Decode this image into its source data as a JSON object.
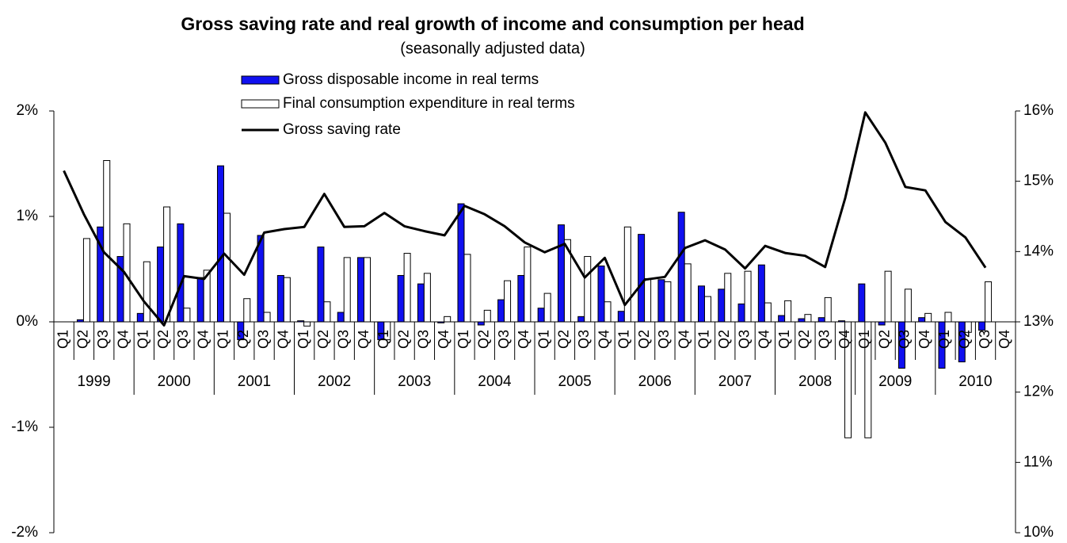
{
  "chart_data": {
    "type": "bar",
    "title": "Gross saving rate and real growth of income and consumption per head",
    "subtitle": "(seasonally adjusted data)",
    "categories": [
      "Q1",
      "Q2",
      "Q3",
      "Q4",
      "Q1",
      "Q2",
      "Q3",
      "Q4",
      "Q1",
      "Q2",
      "Q3",
      "Q4",
      "Q1",
      "Q2",
      "Q3",
      "Q4",
      "Q1",
      "Q2",
      "Q3",
      "Q4",
      "Q1",
      "Q2",
      "Q3",
      "Q4",
      "Q1",
      "Q2",
      "Q3",
      "Q4",
      "Q1",
      "Q2",
      "Q3",
      "Q4",
      "Q1",
      "Q2",
      "Q3",
      "Q4",
      "Q1",
      "Q2",
      "Q3",
      "Q4",
      "Q1",
      "Q2",
      "Q3",
      "Q4",
      "Q1",
      "Q2",
      "Q3",
      "Q4"
    ],
    "years": [
      "1999",
      "2000",
      "2001",
      "2002",
      "2003",
      "2004",
      "2005",
      "2006",
      "2007",
      "2008",
      "2009",
      "2010"
    ],
    "series": [
      {
        "name": "Gross disposable income in real terms",
        "color": "#1010f0",
        "values": [
          0,
          0.02,
          0.9,
          0.62,
          0.08,
          0.71,
          0.93,
          0.42,
          1.48,
          -0.17,
          0.82,
          0.44,
          0.01,
          0.71,
          0.09,
          0.61,
          -0.17,
          0.44,
          0.36,
          -0.01,
          1.12,
          -0.03,
          0.21,
          0.44,
          0.13,
          0.92,
          0.05,
          0.53,
          0.1,
          0.83,
          0.4,
          1.04,
          0.34,
          0.31,
          0.17,
          0.54,
          0.06,
          0.03,
          0.04,
          0.01,
          0.36,
          -0.03,
          -0.44,
          0.04,
          -0.44,
          -0.38,
          -0.08,
          null
        ]
      },
      {
        "name": "Final consumption expenditure in real terms",
        "color": "#ffffff",
        "values": [
          0,
          0.79,
          1.53,
          0.93,
          0.57,
          1.09,
          0.13,
          0.49,
          1.03,
          0.22,
          0.09,
          0.42,
          -0.04,
          0.19,
          0.61,
          0.61,
          -0.17,
          0.65,
          0.46,
          0.05,
          0.64,
          0.11,
          0.39,
          0.71,
          0.27,
          0.78,
          0.62,
          0.19,
          0.9,
          0.41,
          0.38,
          0.55,
          0.24,
          0.46,
          0.48,
          0.18,
          0.2,
          0.07,
          0.23,
          -1.1,
          -1.1,
          0.48,
          0.31,
          0.08,
          0.09,
          -0.1,
          0.38,
          null
        ]
      },
      {
        "name": "Gross saving rate",
        "color": "#000000",
        "axis": "y2",
        "values": [
          15.15,
          14.53,
          13.99,
          13.71,
          13.29,
          12.95,
          13.65,
          13.61,
          13.97,
          13.67,
          14.27,
          14.32,
          14.35,
          14.82,
          14.35,
          14.36,
          14.55,
          14.36,
          14.29,
          14.23,
          14.65,
          14.53,
          14.36,
          14.13,
          13.99,
          14.11,
          13.63,
          13.91,
          13.24,
          13.6,
          13.64,
          14.05,
          14.16,
          14.03,
          13.76,
          14.08,
          13.98,
          13.94,
          13.78,
          14.76,
          15.98,
          15.55,
          14.92,
          14.87,
          14.42,
          14.2,
          13.77,
          null
        ]
      }
    ],
    "ylim": [
      -2,
      2
    ],
    "yticks": [
      {
        "value": -2,
        "label": "-2%"
      },
      {
        "value": -1,
        "label": "-1%"
      },
      {
        "value": 0,
        "label": "0%"
      },
      {
        "value": 1,
        "label": "1%"
      },
      {
        "value": 2,
        "label": "2%"
      }
    ],
    "y2lim": [
      10,
      16
    ],
    "y2ticks": [
      {
        "value": 10,
        "label": "10%"
      },
      {
        "value": 11,
        "label": "11%"
      },
      {
        "value": 12,
        "label": "12%"
      },
      {
        "value": 13,
        "label": "13%"
      },
      {
        "value": 14,
        "label": "14%"
      },
      {
        "value": 15,
        "label": "15%"
      },
      {
        "value": 16,
        "label": "16%"
      }
    ]
  }
}
